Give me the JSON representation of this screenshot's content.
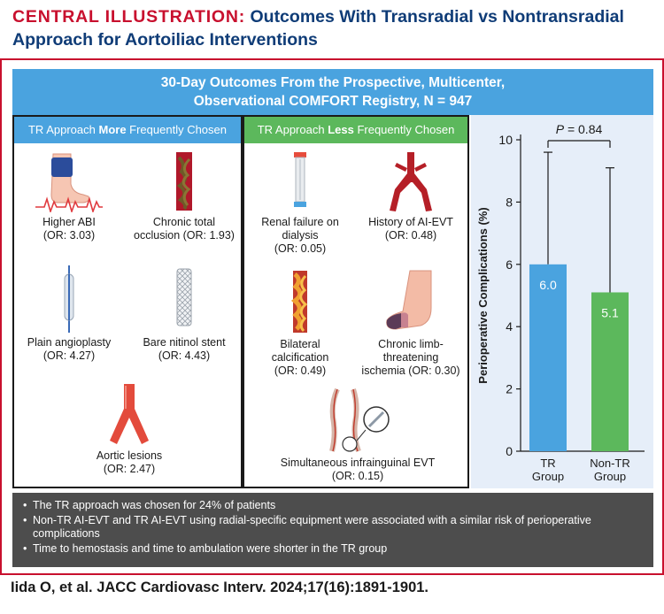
{
  "header": {
    "label": "CENTRAL ILLUSTRATION:",
    "title_line1": "Outcomes With Transradial vs Nontransradial",
    "title_line2": "Approach for Aortoiliac Interventions"
  },
  "banner": {
    "line1": "30-Day Outcomes From the Prospective, Multicenter,",
    "line2": "Observational COMFORT Registry, N = 947"
  },
  "left_panel": {
    "head_pre": "TR Approach ",
    "head_bold": "More",
    "head_post": " Frequently Chosen",
    "items": [
      {
        "lines": [
          "Higher ABI",
          "(OR: 3.03)"
        ],
        "icon": "leg-cuff-icon"
      },
      {
        "lines": [
          "Chronic total",
          "occlusion (OR: 1.93)"
        ],
        "icon": "occluded-artery-icon"
      },
      {
        "lines": [
          "Plain angioplasty",
          "(OR: 4.27)"
        ],
        "icon": "balloon-catheter-icon"
      },
      {
        "lines": [
          "Bare nitinol stent",
          "(OR: 4.43)"
        ],
        "icon": "stent-icon"
      },
      {
        "lines": [
          "Aortic lesions",
          "(OR: 2.47)"
        ],
        "icon": "aortic-bifurcation-icon"
      }
    ]
  },
  "right_panel": {
    "head_pre": "TR Approach ",
    "head_bold": "Less",
    "head_post": " Frequently Chosen",
    "items": [
      {
        "lines": [
          "Renal failure on",
          "dialysis",
          "(OR: 0.05)"
        ],
        "icon": "dialysis-icon"
      },
      {
        "lines": [
          "History of AI-EVT",
          "(OR: 0.48)"
        ],
        "icon": "iliac-artery-icon"
      },
      {
        "lines": [
          "Bilateral",
          "calcification",
          "(OR: 0.49)"
        ],
        "icon": "calcified-artery-icon"
      },
      {
        "lines": [
          "Chronic limb-",
          "threatening",
          "ischemia (OR: 0.30)"
        ],
        "icon": "ischemic-foot-icon"
      },
      {
        "lines": [
          "Simultaneous infrainguinal EVT",
          "(OR: 0.15)"
        ],
        "icon": "leg-arteries-icon"
      }
    ]
  },
  "chart_data": {
    "type": "bar",
    "categories": [
      "TR Group",
      "Non-TR Group"
    ],
    "category_lines": [
      [
        "TR",
        "Group"
      ],
      [
        "Non-TR",
        "Group"
      ]
    ],
    "values": [
      6.0,
      5.1
    ],
    "value_labels": [
      "6.0",
      "5.1"
    ],
    "error_upper": [
      9.6,
      9.1
    ],
    "ylabel": "Perioperative Complications (%)",
    "ylim": [
      0,
      10
    ],
    "yticks": [
      0,
      2,
      4,
      6,
      8,
      10
    ],
    "annotation": {
      "p_symbol": "P",
      "p_value": " = 0.84"
    },
    "colors": [
      "#4aa3df",
      "#5cb85c"
    ],
    "grid": false
  },
  "summary": {
    "bullets": [
      "The TR approach was chosen for 24% of patients",
      "Non-TR AI-EVT and TR AI-EVT using radial-specific equipment were associated with a similar risk of perioperative complications",
      "Time to hemostasis and time to ambulation were shorter in the TR group"
    ]
  },
  "citation": "Iida O, et al. JACC Cardiovasc Interv. 2024;17(16):1891-1901."
}
